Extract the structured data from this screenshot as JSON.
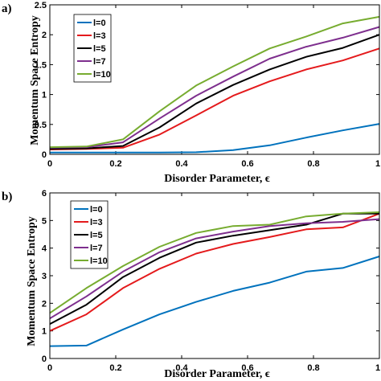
{
  "chart_data": [
    {
      "panel": "a)",
      "type": "line",
      "xlabel": "Disorder Parameter, ϵ",
      "ylabel": "Momentum Space Entropy",
      "xlim": [
        0,
        1
      ],
      "ylim": [
        0,
        2.5
      ],
      "xticks": [
        "0",
        "0.2",
        "0.4",
        "0.6",
        "0.8",
        "1"
      ],
      "yticks": [
        "0",
        "0.5",
        "1",
        "1.5",
        "2",
        "2.5"
      ],
      "x": [
        0,
        0.111,
        0.222,
        0.333,
        0.444,
        0.556,
        0.667,
        0.778,
        0.889,
        1.0
      ],
      "legend_position": "top-left",
      "grid": false,
      "series": [
        {
          "name": "l=0",
          "color": "#0072BD",
          "values": [
            0.03,
            0.03,
            0.03,
            0.03,
            0.035,
            0.07,
            0.15,
            0.28,
            0.4,
            0.51
          ]
        },
        {
          "name": "l=3",
          "color": "#E41A1C",
          "values": [
            0.08,
            0.09,
            0.11,
            0.33,
            0.65,
            0.98,
            1.22,
            1.42,
            1.57,
            1.77
          ]
        },
        {
          "name": "l=5",
          "color": "#000000",
          "values": [
            0.09,
            0.1,
            0.14,
            0.45,
            0.85,
            1.16,
            1.42,
            1.63,
            1.78,
            2.0
          ]
        },
        {
          "name": "l=7",
          "color": "#7E2F8E",
          "values": [
            0.11,
            0.12,
            0.2,
            0.6,
            0.98,
            1.3,
            1.6,
            1.8,
            1.95,
            2.13
          ]
        },
        {
          "name": "l=10",
          "color": "#77AC30",
          "values": [
            0.12,
            0.13,
            0.25,
            0.72,
            1.15,
            1.47,
            1.77,
            1.97,
            2.19,
            2.3
          ]
        }
      ]
    },
    {
      "panel": "b)",
      "type": "line",
      "xlabel": "Disorder Parameter, ϵ",
      "ylabel": "Momentum Space Entropy",
      "xlim": [
        0,
        1
      ],
      "ylim": [
        0,
        6
      ],
      "xticks": [
        "0",
        "0.2",
        "0.4",
        "0.6",
        "0.8",
        "1"
      ],
      "yticks": [
        "0",
        "1",
        "2",
        "3",
        "4",
        "5",
        "6"
      ],
      "x": [
        0,
        0.111,
        0.222,
        0.333,
        0.444,
        0.556,
        0.667,
        0.778,
        0.889,
        1.0
      ],
      "legend_position": "top-left",
      "grid": false,
      "series": [
        {
          "name": "l=0",
          "color": "#0072BD",
          "values": [
            0.45,
            0.47,
            1.05,
            1.6,
            2.05,
            2.45,
            2.75,
            3.15,
            3.28,
            3.7
          ]
        },
        {
          "name": "l=3",
          "color": "#E41A1C",
          "values": [
            1.0,
            1.6,
            2.55,
            3.25,
            3.8,
            4.15,
            4.4,
            4.68,
            4.75,
            5.25
          ]
        },
        {
          "name": "l=5",
          "color": "#000000",
          "values": [
            1.25,
            1.95,
            2.95,
            3.65,
            4.2,
            4.45,
            4.65,
            4.85,
            5.25,
            5.25
          ]
        },
        {
          "name": "l=7",
          "color": "#7E2F8E",
          "values": [
            1.45,
            2.25,
            3.15,
            3.85,
            4.35,
            4.6,
            4.8,
            4.9,
            4.95,
            5.05
          ]
        },
        {
          "name": "l=10",
          "color": "#77AC30",
          "values": [
            1.65,
            2.55,
            3.35,
            4.05,
            4.55,
            4.8,
            4.85,
            5.15,
            5.25,
            5.3
          ]
        }
      ]
    }
  ]
}
